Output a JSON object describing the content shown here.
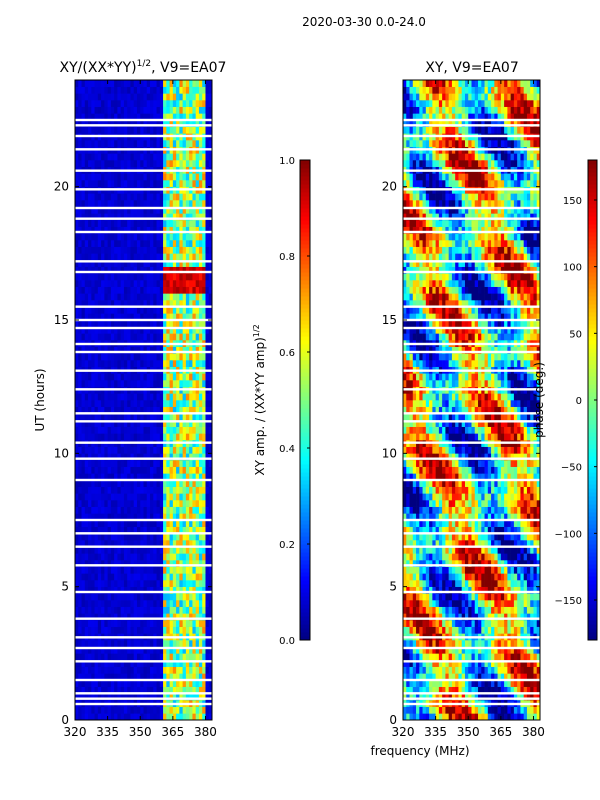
{
  "figure": {
    "suptitle": "2020-03-30 0.0-24.0",
    "xlabel": "frequency (MHz)"
  },
  "chart_data": [
    {
      "type": "heatmap",
      "title_base": "XY/(XX*YY)",
      "title_sup": "1/2",
      "title_tail": ", V9=EA07",
      "xlabel": "",
      "ylabel": "UT (hours)",
      "xlim": [
        320,
        383
      ],
      "ylim": [
        0,
        24
      ],
      "xticks": [
        "320",
        "335",
        "350",
        "365",
        "380"
      ],
      "xtick_values": [
        320,
        335,
        350,
        365,
        380
      ],
      "yticks": [
        "0",
        "5",
        "10",
        "15",
        "20"
      ],
      "ytick_values": [
        0,
        5,
        10,
        15,
        20
      ],
      "colorbar": {
        "label_base": "XY amp. / (XX*YY amp)",
        "label_sup": "1/2",
        "vmin": 0.0,
        "vmax": 1.0,
        "ticks": [
          "0.0",
          "0.2",
          "0.4",
          "0.6",
          "0.8",
          "1.0"
        ],
        "tick_values": [
          0.0,
          0.2,
          0.4,
          0.6,
          0.8,
          1.0
        ],
        "colormap": "jet"
      },
      "active_band_mhz": [
        361,
        380
      ],
      "quiet_value": 0.08,
      "active_value_range": [
        0.3,
        0.75
      ],
      "flagged_ut_hours": [
        0.6,
        0.8,
        1.0,
        1.5,
        2.2,
        2.7,
        3.1,
        3.8,
        4.8,
        5.8,
        6.5,
        7.0,
        7.5,
        9.0,
        9.8,
        10.4,
        11.2,
        11.5,
        12.4,
        13.1,
        13.8,
        14.1,
        14.7,
        15.0,
        15.5,
        16.8,
        17.2,
        18.3,
        18.8,
        19.2,
        19.9,
        20.6,
        21.4,
        21.9,
        22.3,
        22.5
      ]
    },
    {
      "type": "heatmap",
      "title_base": "XY, V9=EA07",
      "title_sup": "",
      "title_tail": "",
      "xlabel": "",
      "ylabel": "",
      "xlim": [
        320,
        383
      ],
      "ylim": [
        0,
        24
      ],
      "xticks": [
        "320",
        "335",
        "350",
        "365",
        "380"
      ],
      "xtick_values": [
        320,
        335,
        350,
        365,
        380
      ],
      "yticks": [
        "0",
        "5",
        "10",
        "15",
        "20"
      ],
      "ytick_values": [
        0,
        5,
        10,
        15,
        20
      ],
      "colorbar": {
        "label_base": "phase (deg.)",
        "label_sup": "",
        "vmin": -180,
        "vmax": 180,
        "ticks": [
          "−150",
          "−100",
          "−50",
          "0",
          "50",
          "100",
          "150"
        ],
        "tick_values": [
          -150,
          -100,
          -50,
          0,
          50,
          100,
          150
        ],
        "colormap": "jet"
      },
      "phase_band_mhz": [
        320,
        383
      ],
      "flagged_ut_hours": [
        0.6,
        0.8,
        1.0,
        1.5,
        2.2,
        2.7,
        3.1,
        3.8,
        4.8,
        5.8,
        6.5,
        7.0,
        7.5,
        9.0,
        9.8,
        10.4,
        11.2,
        11.5,
        12.4,
        13.1,
        13.8,
        14.1,
        14.7,
        15.0,
        15.5,
        16.8,
        17.2,
        18.3,
        18.8,
        19.2,
        19.9,
        20.6,
        21.4,
        21.9,
        22.3,
        22.5
      ]
    }
  ]
}
